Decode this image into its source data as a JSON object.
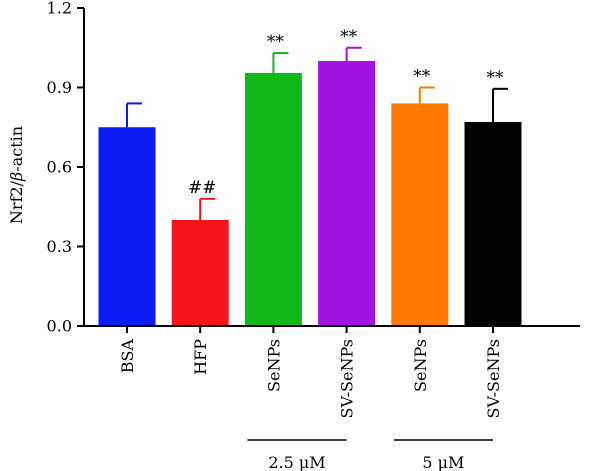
{
  "chart_data": {
    "type": "bar",
    "ylabel_prefix": "Nrf2/",
    "ylabel_italic": "β",
    "ylabel_suffix": "-actin",
    "ylim": [
      0,
      1.2
    ],
    "yticks": [
      "0.0",
      "0.3",
      "0.6",
      "0.9",
      "1.2"
    ],
    "ytick_values": [
      0.0,
      0.3,
      0.6,
      0.9,
      1.2
    ],
    "categories": [
      "BSA",
      "HFP",
      "SeNPs",
      "SV-SeNPs",
      "SeNPs",
      "SV-SeNPs"
    ],
    "values": [
      0.75,
      0.4,
      0.955,
      1.0,
      0.84,
      0.77
    ],
    "errors": [
      0.09,
      0.08,
      0.075,
      0.05,
      0.06,
      0.125
    ],
    "colors": [
      "#0b1cf5",
      "#f5141a",
      "#12b81a",
      "#a312e0",
      "#ff7a00",
      "#000000"
    ],
    "annotations": [
      "",
      "##",
      "**",
      "**",
      "**",
      "**"
    ],
    "groups": [
      {
        "label": "2.5 μM",
        "from": 2,
        "to": 3
      },
      {
        "label": "5 μM",
        "from": 4,
        "to": 5
      }
    ],
    "grid": false
  }
}
